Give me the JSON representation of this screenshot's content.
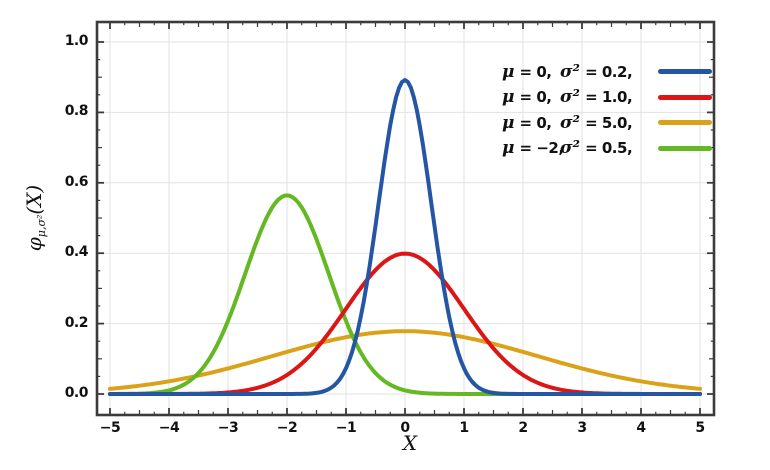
{
  "figure": {
    "background": "#ffffff"
  },
  "axes": {
    "xlabel": "X",
    "ylabel": {
      "phi": "φ",
      "subscript": "μ,σ²",
      "arg": "(X)"
    },
    "x_tick_values": [
      -5,
      -4,
      -3,
      -2,
      -1,
      0,
      1,
      2,
      3,
      4,
      5
    ],
    "x_tick_labels": [
      "−5",
      "−4",
      "−3",
      "−2",
      "−1",
      "0",
      "1",
      "2",
      "3",
      "4",
      "5"
    ],
    "y_tick_values": [
      0,
      0.2,
      0.4,
      0.6,
      0.8,
      1.0
    ],
    "y_tick_labels": [
      "0.0",
      "0.2",
      "0.4",
      "0.6",
      "0.8",
      "1.0"
    ]
  },
  "legend": {
    "entries": [
      {
        "mu_symbol": "μ",
        "mu_text": "= 0,",
        "sigma_symbol": "σ²",
        "sigma_text": "= 0.2,",
        "color": "#2456a4"
      },
      {
        "mu_symbol": "μ",
        "mu_text": "= 0,",
        "sigma_symbol": "σ²",
        "sigma_text": "= 1.0,",
        "color": "#dc1515"
      },
      {
        "mu_symbol": "μ",
        "mu_text": "= 0,",
        "sigma_symbol": "σ²",
        "sigma_text": "= 5.0,",
        "color": "#dba118"
      },
      {
        "mu_symbol": "μ",
        "mu_text": "= −2,",
        "sigma_symbol": "σ²",
        "sigma_text": "= 0.5,",
        "color": "#64b822"
      }
    ]
  },
  "chart_data": {
    "type": "line",
    "function": "normal_pdf",
    "title": "",
    "xlabel": "X",
    "ylabel": "φ_{μ,σ²}(X)",
    "x_range": [
      -5,
      5
    ],
    "xlim": [
      -5.22,
      5.25
    ],
    "ylim": [
      -0.06,
      1.06
    ],
    "grid": true,
    "legend_position": "upper right",
    "series": [
      {
        "id": "var02",
        "name": "μ = 0, σ² = 0.2",
        "mu": 0,
        "sigma2": 0.2,
        "peak": 0.89,
        "color": "#2456a4",
        "z": 3
      },
      {
        "id": "var10",
        "name": "μ = 0, σ² = 1.0",
        "mu": 0,
        "sigma2": 1.0,
        "peak": 0.4,
        "color": "#dc1515",
        "z": 2
      },
      {
        "id": "var50",
        "name": "μ = 0, σ² = 5.0",
        "mu": 0,
        "sigma2": 5.0,
        "peak": 0.18,
        "color": "#dba118",
        "z": 0
      },
      {
        "id": "mu-2",
        "name": "μ = −2, σ² = 0.5",
        "mu": -2,
        "sigma2": 0.5,
        "peak": 0.56,
        "color": "#64b822",
        "z": 1
      }
    ],
    "colors": {
      "frame": "#3b3b3b",
      "grid": "#e2e2e2",
      "text": "#111111"
    }
  }
}
